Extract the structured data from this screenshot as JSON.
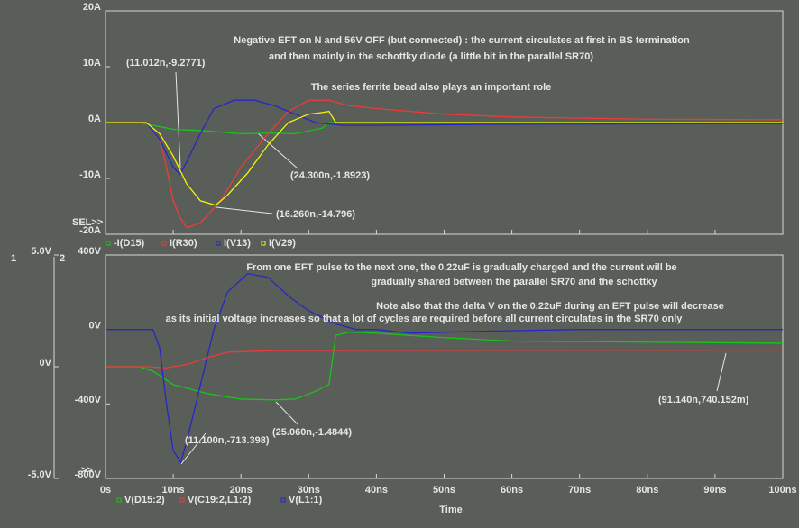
{
  "chart_data": [
    {
      "type": "line",
      "annotations": [
        "Negative EFT on N and 56V OFF (but connected) : the current circulates at first in BS termination",
        "and then mainly in the schottky diode (a little bit in the parallel SR70)",
        "The series ferrite bead also plays an important role"
      ],
      "cursor_labels": [
        "(11.012n,-9.2771)",
        "(24.300n,-1.8923)",
        "(16.260n,-14.796)",
        "SEL>>"
      ],
      "xlim": [
        0,
        100
      ],
      "ylim": [
        -20,
        20
      ],
      "yticks": [
        {
          "value": 20,
          "label": "20A"
        },
        {
          "value": 10,
          "label": "10A"
        },
        {
          "value": 0,
          "label": "0A"
        },
        {
          "value": -10,
          "label": "-10A"
        },
        {
          "value": -20,
          "label": "-20A"
        }
      ],
      "series": [
        {
          "name": "-I(D15)",
          "color": "#19c319",
          "x": [
            0,
            5,
            7,
            10,
            15,
            20,
            24.3,
            28,
            32,
            33,
            40,
            100
          ],
          "values": [
            0,
            0,
            -0.5,
            -1.2,
            -1.5,
            -2,
            -1.8923,
            -2,
            -1,
            0,
            0,
            0
          ]
        },
        {
          "name": "I(R30)",
          "color": "#f03a3a",
          "x": [
            0,
            6,
            8,
            9,
            10,
            11,
            12,
            14,
            17,
            20,
            24,
            27,
            30,
            33,
            36,
            40,
            50,
            60,
            80,
            100
          ],
          "values": [
            0,
            0,
            -3,
            -8,
            -14,
            -17,
            -18.8,
            -18,
            -14,
            -8,
            -2,
            2,
            4,
            4,
            3,
            2.5,
            1.5,
            1,
            0.6,
            0.5
          ]
        },
        {
          "name": "I(V13)",
          "color": "#2727c8",
          "x": [
            0,
            6,
            8,
            10,
            11.012,
            12,
            14,
            16,
            19,
            22,
            25,
            28,
            31,
            35,
            40,
            60,
            100
          ],
          "values": [
            0,
            0,
            -3,
            -8,
            -9.2771,
            -7,
            -2,
            2.5,
            4,
            4,
            3,
            1.5,
            0,
            -0.5,
            -0.5,
            -0.3,
            -0.2
          ]
        },
        {
          "name": "I(V29)",
          "color": "#f5f500",
          "x": [
            0,
            6,
            8,
            10,
            12,
            14,
            16.26,
            18,
            21,
            24,
            27,
            30,
            32,
            33,
            34,
            36,
            100
          ],
          "values": [
            0,
            0,
            -2,
            -6,
            -11,
            -14,
            -14.796,
            -13,
            -9,
            -4,
            0,
            1.5,
            1.8,
            2,
            0,
            0,
            0
          ]
        }
      ]
    },
    {
      "type": "line",
      "annotations": [
        "From one EFT pulse to the next one, the 0.22uF is gradually charged  and the current will be",
        "gradually shared between the parallel SR70 and the schottky",
        "Note also that the delta V on the 0.22uF during an EFT pulse will decrease",
        "as its initial voltage increases so that a lot of cycles are required before all current circulates in the SR70 only"
      ],
      "cursor_labels": [
        "(25.060n,-1.4844)",
        "(11.100n,-713.398)",
        "(91.140n,740.152m)",
        ">>"
      ],
      "axis_numbers": [
        "1",
        "2"
      ],
      "xlabel": "Time",
      "xlim": [
        0,
        100
      ],
      "xticks": [
        {
          "value": 0,
          "label": "0s"
        },
        {
          "value": 10,
          "label": "10ns"
        },
        {
          "value": 20,
          "label": "20ns"
        },
        {
          "value": 30,
          "label": "30ns"
        },
        {
          "value": 40,
          "label": "40ns"
        },
        {
          "value": 50,
          "label": "50ns"
        },
        {
          "value": 60,
          "label": "60ns"
        },
        {
          "value": 70,
          "label": "70ns"
        },
        {
          "value": 80,
          "label": "80ns"
        },
        {
          "value": 90,
          "label": "90ns"
        },
        {
          "value": 100,
          "label": "100ns"
        }
      ],
      "ylim": [
        -800,
        400
      ],
      "yticks": [
        {
          "value": 400,
          "label": "400V"
        },
        {
          "value": 0,
          "label": "0V"
        },
        {
          "value": -400,
          "label": "-400V"
        },
        {
          "value": -800,
          "label": "-800V"
        }
      ],
      "y2lim": [
        -5,
        5
      ],
      "y2ticks": [
        {
          "value": 5,
          "label": "5.0V"
        },
        {
          "value": 0,
          "label": "0V"
        },
        {
          "value": -5,
          "label": "-5.0V"
        }
      ],
      "series": [
        {
          "name": "V(D15:2)",
          "color": "#19c319",
          "axis": "y2",
          "x": [
            0,
            5,
            7,
            10,
            15,
            20,
            25.06,
            28,
            31,
            33,
            34,
            36,
            40,
            50,
            60,
            80,
            100
          ],
          "values": [
            0,
            0,
            -0.2,
            -0.8,
            -1.2,
            -1.45,
            -1.4844,
            -1.45,
            -1.1,
            -0.8,
            1.4,
            1.55,
            1.5,
            1.3,
            1.15,
            1.1,
            1.05
          ]
        },
        {
          "name": "V(C19:2,L1:2)",
          "color": "#f03a3a",
          "axis": "y2",
          "x": [
            0,
            6,
            9,
            12,
            15,
            18,
            25,
            40,
            91.14,
            100
          ],
          "values": [
            0,
            0,
            -0.05,
            0.1,
            0.4,
            0.65,
            0.72,
            0.73,
            0.740152,
            0.74
          ]
        },
        {
          "name": "V(L1:1)",
          "color": "#2727c8",
          "x": [
            0,
            7,
            8,
            9,
            10,
            11.1,
            12,
            14,
            16,
            18,
            21,
            24,
            27,
            30,
            34,
            37,
            40,
            45,
            55,
            70,
            100
          ],
          "values": [
            0,
            0,
            -100,
            -400,
            -650,
            -713.398,
            -600,
            -300,
            0,
            200,
            300,
            280,
            180,
            100,
            30,
            0,
            0,
            -20,
            -10,
            0,
            0
          ]
        }
      ]
    }
  ]
}
